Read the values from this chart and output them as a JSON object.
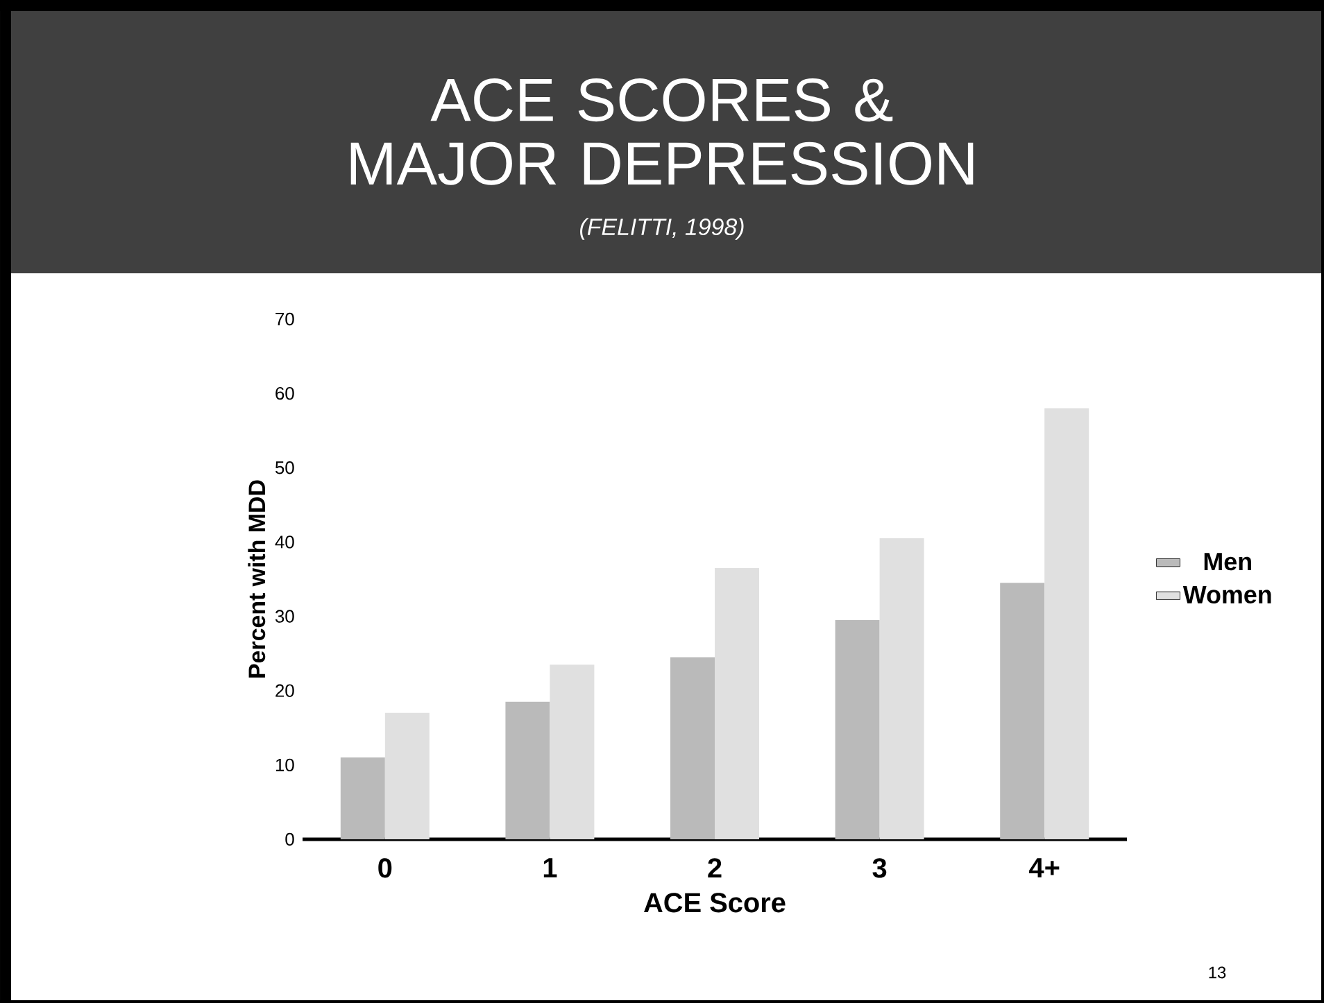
{
  "chart_data": {
    "type": "bar",
    "title": "ACE SCORES & MAJOR DEPRESSION",
    "subtitle": "(FELITTI, 1998)",
    "xlabel": "ACE Score",
    "ylabel": "Percent with MDD",
    "categories": [
      "0",
      "1",
      "2",
      "3",
      "4+"
    ],
    "series": [
      {
        "name": "Men",
        "color": "#bababa",
        "values": [
          11,
          18.5,
          24.5,
          29.5,
          34.5
        ]
      },
      {
        "name": "Women",
        "color": "#e0e0e0",
        "values": [
          17,
          23.5,
          36.5,
          40.5,
          58
        ]
      }
    ],
    "ylim": [
      0,
      70
    ],
    "yticks": [
      0,
      10,
      20,
      30,
      40,
      50,
      60,
      70
    ],
    "legend": "right",
    "grid": false,
    "annotations": [
      "13"
    ]
  }
}
